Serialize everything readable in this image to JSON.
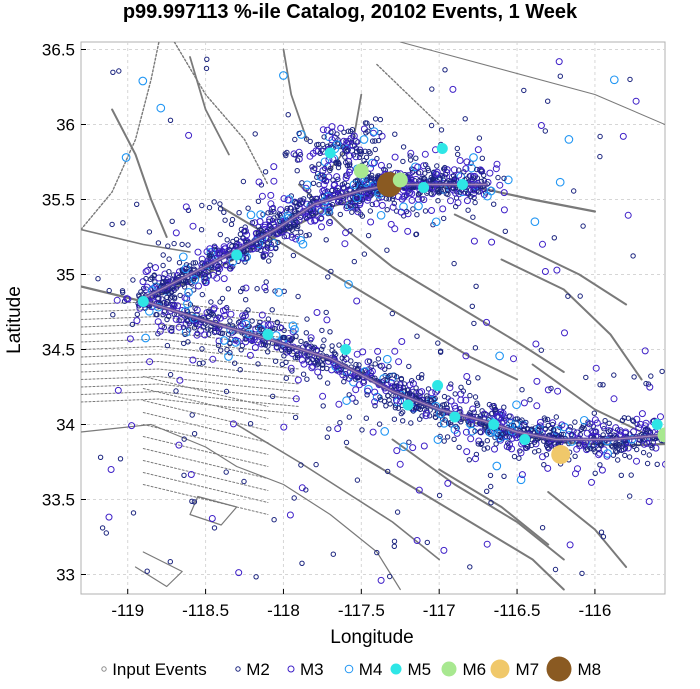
{
  "chart_data": {
    "type": "scatter",
    "title": "p99.997113 %-ile Catalog, 20102 Events, 1 Week",
    "xlabel": "Longitude",
    "ylabel": "Latitude",
    "xlim": [
      -119.3,
      -115.55
    ],
    "ylim": [
      32.87,
      36.55
    ],
    "xticks": [
      -119,
      -118.5,
      -118,
      -117.5,
      -117,
      -116.5,
      -116
    ],
    "xtick_labels": [
      "-119",
      "-118.5",
      "-118",
      "-117.5",
      "-117",
      "-116.5",
      "-116"
    ],
    "yticks": [
      33,
      33.5,
      34,
      34.5,
      35,
      35.5,
      36,
      36.5
    ],
    "ytick_labels": [
      "33",
      "33.5",
      "34",
      "34.5",
      "35",
      "35.5",
      "36",
      "36.5"
    ],
    "grid": true,
    "legend_position": "bottom",
    "legend": [
      {
        "label": "Input Events",
        "marker": "hollow-small-gray"
      },
      {
        "label": "M2",
        "marker": "hollow-navy"
      },
      {
        "label": "M3",
        "marker": "hollow-blue-violet"
      },
      {
        "label": "M4",
        "marker": "hollow-light-blue"
      },
      {
        "label": "M5",
        "marker": "filled-cyan"
      },
      {
        "label": "M6",
        "marker": "filled-light-green"
      },
      {
        "label": "M7",
        "marker": "filled-gold"
      },
      {
        "label": "M8",
        "marker": "filled-brown"
      }
    ],
    "colors": {
      "input": "#8c8c8c",
      "M2": "#1a237e",
      "M3": "#3d1fc7",
      "M4": "#2196f3",
      "M5": "#2ee6e6",
      "M6": "#a8e890",
      "M7": "#f0c86a",
      "M8": "#8a5a22",
      "fault_trace": "#7a7a7a",
      "rupture": "#5a4aa0"
    },
    "notable_events": [
      {
        "magnitude": "M8",
        "lon": -117.32,
        "lat": 35.6
      },
      {
        "magnitude": "M7",
        "lon": -116.22,
        "lat": 33.8
      },
      {
        "magnitude": "M6",
        "lon": -117.5,
        "lat": 35.69
      },
      {
        "magnitude": "M6",
        "lon": -117.25,
        "lat": 35.63
      },
      {
        "magnitude": "M6",
        "lon": -115.55,
        "lat": 33.93
      },
      {
        "magnitude": "M5",
        "lon": -117.7,
        "lat": 35.81
      },
      {
        "magnitude": "M5",
        "lon": -116.98,
        "lat": 35.84
      },
      {
        "magnitude": "M5",
        "lon": -117.01,
        "lat": 34.26
      },
      {
        "magnitude": "M5",
        "lon": -116.85,
        "lat": 35.6
      },
      {
        "magnitude": "M5",
        "lon": -117.1,
        "lat": 35.58
      },
      {
        "magnitude": "M5",
        "lon": -116.65,
        "lat": 34.0
      },
      {
        "magnitude": "M5",
        "lon": -116.45,
        "lat": 33.9
      },
      {
        "magnitude": "M5",
        "lon": -118.9,
        "lat": 34.82
      },
      {
        "magnitude": "M5",
        "lon": -118.3,
        "lat": 35.13
      },
      {
        "magnitude": "M5",
        "lon": -117.6,
        "lat": 34.5
      },
      {
        "magnitude": "M5",
        "lon": -118.1,
        "lat": 34.6
      },
      {
        "magnitude": "M5",
        "lon": -117.2,
        "lat": 34.13
      },
      {
        "magnitude": "M5",
        "lon": -116.9,
        "lat": 34.05
      },
      {
        "magnitude": "M5",
        "lon": -115.6,
        "lat": 34.0
      }
    ],
    "rupture_trace": [
      [
        -118.92,
        34.83
      ],
      [
        -118.6,
        35.0
      ],
      [
        -118.3,
        35.16
      ],
      [
        -118.05,
        35.3
      ],
      [
        -117.8,
        35.47
      ],
      [
        -117.5,
        35.56
      ],
      [
        -117.3,
        35.6
      ],
      [
        -117.0,
        35.6
      ],
      [
        -116.7,
        35.6
      ]
    ],
    "rupture_trace_2": [
      [
        -118.92,
        34.83
      ],
      [
        -118.5,
        34.69
      ],
      [
        -118.1,
        34.57
      ],
      [
        -117.7,
        34.44
      ],
      [
        -117.3,
        34.22
      ],
      [
        -117.0,
        34.1
      ],
      [
        -116.7,
        34.02
      ],
      [
        -116.5,
        33.95
      ],
      [
        -116.25,
        33.9
      ],
      [
        -115.9,
        33.9
      ],
      [
        -115.55,
        33.93
      ]
    ]
  }
}
